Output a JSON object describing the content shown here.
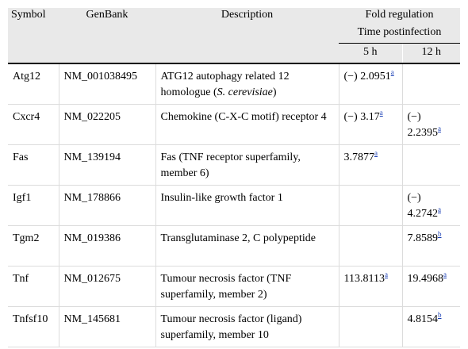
{
  "table": {
    "headers": {
      "symbol": "Symbol",
      "genbank": "GenBank",
      "description": "Description",
      "fold_regulation": "Fold regulation",
      "time_postinfection": "Time postinfection",
      "col_5h": "5 h",
      "col_12h": "12 h"
    },
    "rows": [
      {
        "symbol": "Atg12",
        "genbank": "NM_001038495",
        "description": "ATG12 autophagy related 12 homologue (",
        "description_italic": "S. cerevisiae",
        "description_tail": ")",
        "h5": "(−) 2.0951",
        "h5_note": "a",
        "h12": "",
        "h12_note": ""
      },
      {
        "symbol": "Cxcr4",
        "genbank": "NM_022205",
        "description": "Chemokine (C-X-C motif) receptor 4",
        "description_italic": "",
        "description_tail": "",
        "h5": "(−) 3.17",
        "h5_note": "a",
        "h12": "(−) 2.2395",
        "h12_note": "a"
      },
      {
        "symbol": "Fas",
        "genbank": "NM_139194",
        "description": "Fas (TNF receptor superfamily, member 6)",
        "description_italic": "",
        "description_tail": "",
        "h5": "3.7877",
        "h5_note": "a",
        "h12": "",
        "h12_note": ""
      },
      {
        "symbol": "Igf1",
        "genbank": "NM_178866",
        "description": "Insulin-like growth factor 1",
        "description_italic": "",
        "description_tail": "",
        "h5": "",
        "h5_note": "",
        "h12": "(−) 4.2742",
        "h12_note": "a"
      },
      {
        "symbol": "Tgm2",
        "genbank": "NM_019386",
        "description": "Transglutaminase 2, C polypeptide",
        "description_italic": "",
        "description_tail": "",
        "h5": "",
        "h5_note": "",
        "h12": "7.8589",
        "h12_note": "b"
      },
      {
        "symbol": "Tnf",
        "genbank": "NM_012675",
        "description": "Tumour necrosis factor (TNF superfamily, member 2)",
        "description_italic": "",
        "description_tail": "",
        "h5": "113.8113",
        "h5_note": "a",
        "h12": "19.4968",
        "h12_note": "a"
      },
      {
        "symbol": "Tnfsf10",
        "genbank": "NM_145681",
        "description": "Tumour necrosis factor (ligand) superfamily, member 10",
        "description_italic": "",
        "description_tail": "",
        "h5": "",
        "h5_note": "",
        "h12": "4.8154",
        "h12_note": "b"
      }
    ]
  }
}
